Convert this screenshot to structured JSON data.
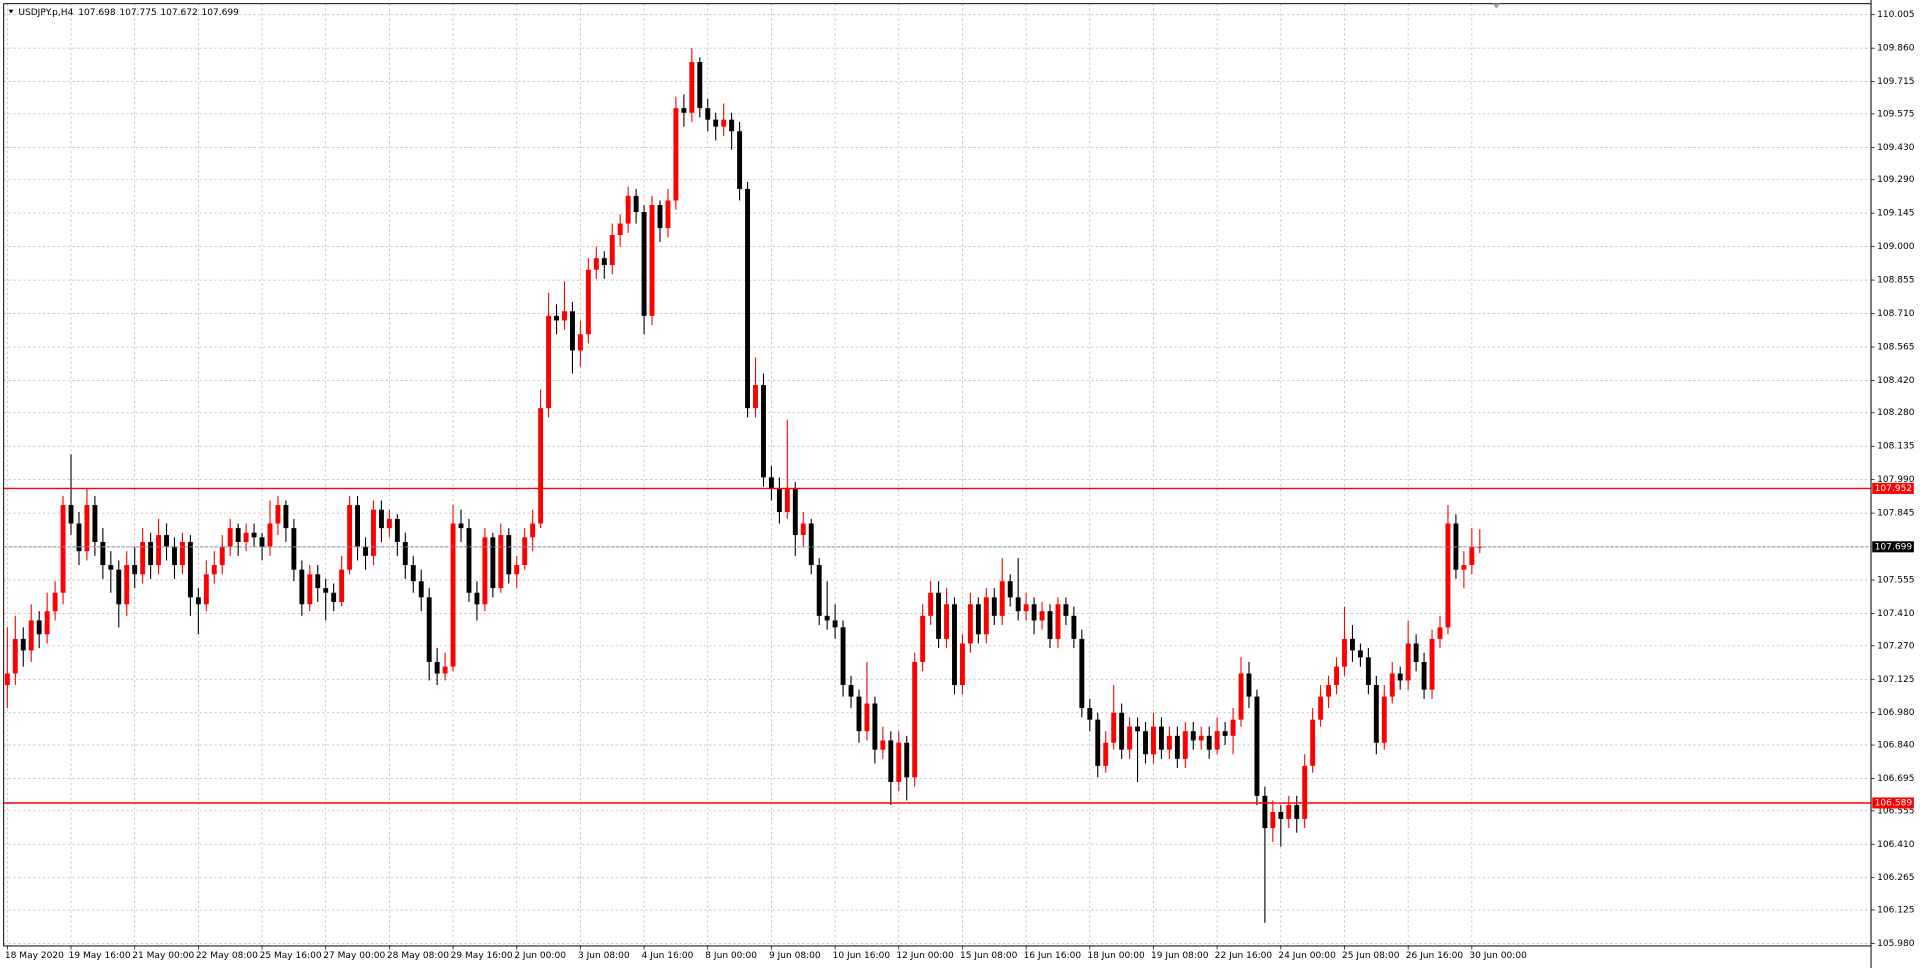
{
  "chart_data": {
    "type": "candlestick",
    "symbol": "USDJPY.p,H4",
    "ylim": [
      105.98,
      110.005
    ],
    "yticks": [
      110.005,
      {
        "value": 109.86,
        "label": "109.860"
      },
      109.715,
      109.575,
      {
        "value": 109.43,
        "label": "109.430"
      },
      {
        "value": 109.29,
        "label": "109.290"
      },
      109.145,
      {
        "value": 109,
        "label": "109.000"
      },
      108.855,
      {
        "value": 108.71,
        "label": "108.710"
      },
      108.565,
      {
        "value": 108.42,
        "label": "108.420"
      },
      {
        "value": 108.28,
        "label": "108.280"
      },
      108.135,
      {
        "value": 107.99,
        "label": "107.990"
      },
      107.845,
      107.555,
      {
        "value": 107.41,
        "label": "107.410"
      },
      {
        "value": 107.27,
        "label": "107.270"
      },
      107.125,
      {
        "value": 106.98,
        "label": "106.980"
      },
      {
        "value": 106.84,
        "label": "106.840"
      },
      106.695,
      106.555,
      {
        "value": 106.41,
        "label": "106.410"
      },
      106.265,
      106.125,
      {
        "value": 105.98,
        "label": "105.980"
      }
    ],
    "grid": true,
    "up_color": "#ff0000",
    "down_color": "#000000",
    "levels": [
      107.952,
      106.589
    ],
    "level_color": "#ff0000",
    "current_price": 107.699,
    "current_color": "#7f8fa6",
    "categories": [
      "18 May 2020",
      null,
      null,
      null,
      null,
      null,
      null,
      null,
      "19 May 16:00",
      null,
      null,
      null,
      null,
      null,
      null,
      null,
      "21 May 00:00",
      null,
      null,
      null,
      null,
      null,
      null,
      null,
      "22 May 08:00",
      null,
      null,
      null,
      null,
      null,
      null,
      null,
      "25 May 16:00",
      null,
      null,
      null,
      null,
      null,
      null,
      null,
      "27 May 00:00",
      null,
      null,
      null,
      null,
      null,
      null,
      null,
      "28 May 08:00",
      null,
      null,
      null,
      null,
      null,
      null,
      null,
      "29 May 16:00",
      null,
      null,
      null,
      null,
      null,
      null,
      null,
      "2 Jun 00:00",
      null,
      null,
      null,
      null,
      null,
      null,
      null,
      "3 Jun 08:00",
      null,
      null,
      null,
      null,
      null,
      null,
      null,
      "4 Jun 16:00",
      null,
      null,
      null,
      null,
      null,
      null,
      null,
      "8 Jun 00:00",
      null,
      null,
      null,
      null,
      null,
      null,
      null,
      "9 Jun 08:00",
      null,
      null,
      null,
      null,
      null,
      null,
      null,
      "10 Jun 16:00",
      null,
      null,
      null,
      null,
      null,
      null,
      null,
      "12 Jun 00:00",
      null,
      null,
      null,
      null,
      null,
      null,
      null,
      "15 Jun 08:00",
      null,
      null,
      null,
      null,
      null,
      null,
      null,
      "16 Jun 16:00",
      null,
      null,
      null,
      null,
      null,
      null,
      null,
      "18 Jun 00:00",
      null,
      null,
      null,
      null,
      null,
      null,
      null,
      "19 Jun 08:00",
      null,
      null,
      null,
      null,
      null,
      null,
      null,
      "22 Jun 16:00",
      null,
      null,
      null,
      null,
      null,
      null,
      null,
      "24 Jun 00:00",
      null,
      null,
      null,
      null,
      null,
      null,
      null,
      "25 Jun 08:00",
      null,
      null,
      null,
      null,
      null,
      null,
      null,
      "26 Jun 16:00",
      null,
      null,
      null,
      null,
      null,
      null,
      null,
      "30 Jun 00:00",
      null
    ],
    "candles": [
      [
        107.1,
        107.35,
        107.0,
        107.15
      ],
      [
        107.15,
        107.4,
        107.1,
        107.3
      ],
      [
        107.3,
        107.35,
        107.18,
        107.25
      ],
      [
        107.25,
        107.45,
        107.2,
        107.38
      ],
      [
        107.38,
        107.42,
        107.26,
        107.32
      ],
      [
        107.32,
        107.5,
        107.28,
        107.42
      ],
      [
        107.42,
        107.55,
        107.38,
        107.5
      ],
      [
        107.5,
        107.92,
        107.45,
        107.88
      ],
      [
        107.88,
        108.1,
        107.75,
        107.8
      ],
      [
        107.8,
        107.85,
        107.62,
        107.68
      ],
      [
        107.68,
        107.95,
        107.64,
        107.88
      ],
      [
        107.88,
        107.92,
        107.66,
        107.72
      ],
      [
        107.72,
        107.78,
        107.56,
        107.62
      ],
      [
        107.62,
        107.68,
        107.5,
        107.6
      ],
      [
        107.6,
        107.64,
        107.35,
        107.45
      ],
      [
        107.45,
        107.68,
        107.4,
        107.62
      ],
      [
        107.62,
        107.7,
        107.52,
        107.58
      ],
      [
        107.58,
        107.78,
        107.54,
        107.72
      ],
      [
        107.72,
        107.76,
        107.56,
        107.62
      ],
      [
        107.62,
        107.82,
        107.58,
        107.75
      ],
      [
        107.75,
        107.8,
        107.64,
        107.7
      ],
      [
        107.7,
        107.74,
        107.56,
        107.62
      ],
      [
        107.62,
        107.76,
        107.58,
        107.72
      ],
      [
        107.72,
        107.75,
        107.4,
        107.48
      ],
      [
        107.48,
        107.52,
        107.32,
        107.45
      ],
      [
        107.45,
        107.64,
        107.42,
        107.58
      ],
      [
        107.58,
        107.68,
        107.54,
        107.62
      ],
      [
        107.62,
        107.75,
        107.58,
        107.7
      ],
      [
        107.7,
        107.82,
        107.66,
        107.78
      ],
      [
        107.78,
        107.8,
        107.66,
        107.72
      ],
      [
        107.72,
        107.8,
        107.68,
        107.76
      ],
      [
        107.76,
        107.8,
        107.7,
        107.74
      ],
      [
        107.74,
        107.76,
        107.64,
        107.7
      ],
      [
        107.7,
        107.9,
        107.66,
        107.8
      ],
      [
        107.8,
        107.92,
        107.75,
        107.88
      ],
      [
        107.88,
        107.9,
        107.72,
        107.78
      ],
      [
        107.78,
        107.82,
        107.55,
        107.6
      ],
      [
        107.6,
        107.64,
        107.4,
        107.45
      ],
      [
        107.45,
        107.62,
        107.42,
        107.58
      ],
      [
        107.58,
        107.62,
        107.46,
        107.52
      ],
      [
        107.52,
        107.56,
        107.38,
        107.5
      ],
      [
        107.5,
        107.54,
        107.42,
        107.46
      ],
      [
        107.46,
        107.66,
        107.44,
        107.6
      ],
      [
        107.6,
        107.92,
        107.58,
        107.88
      ],
      [
        107.88,
        107.92,
        107.64,
        107.7
      ],
      [
        107.7,
        107.74,
        107.6,
        107.66
      ],
      [
        107.66,
        107.9,
        107.62,
        107.86
      ],
      [
        107.86,
        107.9,
        107.72,
        107.78
      ],
      [
        107.78,
        107.86,
        107.74,
        107.82
      ],
      [
        107.82,
        107.84,
        107.66,
        107.72
      ],
      [
        107.72,
        107.76,
        107.56,
        107.62
      ],
      [
        107.62,
        107.66,
        107.5,
        107.55
      ],
      [
        107.55,
        107.6,
        107.42,
        107.48
      ],
      [
        107.48,
        107.52,
        107.12,
        107.2
      ],
      [
        107.2,
        107.26,
        107.1,
        107.15
      ],
      [
        107.15,
        107.24,
        107.12,
        107.18
      ],
      [
        107.18,
        107.88,
        107.16,
        107.8
      ],
      [
        107.8,
        107.86,
        107.72,
        107.78
      ],
      [
        107.78,
        107.82,
        107.46,
        107.5
      ],
      [
        107.5,
        107.55,
        107.38,
        107.45
      ],
      [
        107.45,
        107.78,
        107.42,
        107.74
      ],
      [
        107.74,
        107.76,
        107.48,
        107.52
      ],
      [
        107.52,
        107.8,
        107.5,
        107.75
      ],
      [
        107.75,
        107.78,
        107.54,
        107.58
      ],
      [
        107.58,
        107.66,
        107.52,
        107.62
      ],
      [
        107.62,
        107.78,
        107.6,
        107.74
      ],
      [
        107.74,
        107.86,
        107.68,
        107.8
      ],
      [
        107.8,
        108.38,
        107.78,
        108.3
      ],
      [
        108.3,
        108.8,
        108.26,
        108.7
      ],
      [
        108.7,
        108.75,
        108.62,
        108.68
      ],
      [
        108.68,
        108.85,
        108.64,
        108.72
      ],
      [
        108.72,
        108.76,
        108.45,
        108.55
      ],
      [
        108.55,
        108.68,
        108.48,
        108.62
      ],
      [
        108.62,
        108.95,
        108.58,
        108.9
      ],
      [
        108.9,
        109.0,
        108.86,
        108.95
      ],
      [
        108.95,
        108.98,
        108.86,
        108.92
      ],
      [
        108.92,
        109.1,
        108.88,
        109.05
      ],
      [
        109.05,
        109.14,
        109.0,
        109.1
      ],
      [
        109.1,
        109.26,
        109.06,
        109.22
      ],
      [
        109.22,
        109.25,
        109.1,
        109.15
      ],
      [
        109.15,
        109.18,
        108.62,
        108.7
      ],
      [
        108.7,
        109.22,
        108.66,
        109.18
      ],
      [
        109.18,
        109.2,
        109.02,
        109.08
      ],
      [
        109.08,
        109.25,
        109.04,
        109.2
      ],
      [
        109.2,
        109.65,
        109.16,
        109.6
      ],
      [
        109.6,
        109.66,
        109.52,
        109.58
      ],
      [
        109.58,
        109.86,
        109.54,
        109.8
      ],
      [
        109.8,
        109.82,
        109.56,
        109.6
      ],
      [
        109.6,
        109.64,
        109.5,
        109.55
      ],
      [
        109.55,
        109.58,
        109.46,
        109.52
      ],
      [
        109.52,
        109.62,
        109.48,
        109.55
      ],
      [
        109.55,
        109.58,
        109.42,
        109.5
      ],
      [
        109.5,
        109.54,
        109.2,
        109.25
      ],
      [
        109.25,
        109.28,
        108.26,
        108.3
      ],
      [
        108.3,
        108.52,
        108.26,
        108.4
      ],
      [
        108.4,
        108.45,
        107.96,
        108.0
      ],
      [
        108.0,
        108.05,
        107.9,
        107.95
      ],
      [
        107.95,
        108.0,
        107.8,
        107.85
      ],
      [
        107.85,
        108.25,
        107.82,
        107.95
      ],
      [
        107.95,
        107.98,
        107.66,
        107.75
      ],
      [
        107.75,
        107.85,
        107.7,
        107.8
      ],
      [
        107.8,
        107.82,
        107.58,
        107.62
      ],
      [
        107.62,
        107.65,
        107.36,
        107.4
      ],
      [
        107.4,
        107.55,
        107.34,
        107.38
      ],
      [
        107.38,
        107.45,
        107.3,
        107.35
      ],
      [
        107.35,
        107.38,
        107.05,
        107.1
      ],
      [
        107.1,
        107.14,
        107.0,
        107.05
      ],
      [
        107.05,
        107.08,
        106.85,
        106.9
      ],
      [
        106.9,
        107.2,
        106.86,
        107.02
      ],
      [
        107.02,
        107.05,
        106.76,
        106.82
      ],
      [
        106.82,
        106.92,
        106.78,
        106.86
      ],
      [
        106.86,
        106.9,
        106.58,
        106.68
      ],
      [
        106.68,
        106.9,
        106.64,
        106.85
      ],
      [
        106.85,
        106.88,
        106.6,
        106.7
      ],
      [
        106.7,
        107.24,
        106.66,
        107.2
      ],
      [
        107.2,
        107.45,
        107.16,
        107.4
      ],
      [
        107.4,
        107.55,
        107.36,
        107.5
      ],
      [
        107.5,
        107.55,
        107.26,
        107.3
      ],
      [
        107.3,
        107.52,
        107.26,
        107.45
      ],
      [
        107.45,
        107.48,
        107.06,
        107.1
      ],
      [
        107.1,
        107.32,
        107.06,
        107.28
      ],
      [
        107.28,
        107.5,
        107.24,
        107.45
      ],
      [
        107.45,
        107.48,
        107.28,
        107.32
      ],
      [
        107.32,
        107.52,
        107.28,
        107.48
      ],
      [
        107.48,
        107.52,
        107.36,
        107.4
      ],
      [
        107.4,
        107.65,
        107.36,
        107.55
      ],
      [
        107.55,
        107.58,
        107.44,
        107.48
      ],
      [
        107.48,
        107.65,
        107.38,
        107.42
      ],
      [
        107.42,
        107.5,
        107.38,
        107.45
      ],
      [
        107.45,
        107.48,
        107.32,
        107.38
      ],
      [
        107.38,
        107.46,
        107.34,
        107.42
      ],
      [
        107.42,
        107.45,
        107.26,
        107.3
      ],
      [
        107.3,
        107.48,
        107.26,
        107.45
      ],
      [
        107.45,
        107.48,
        107.36,
        107.4
      ],
      [
        107.4,
        107.44,
        107.26,
        107.3
      ],
      [
        107.3,
        107.34,
        106.96,
        107.0
      ],
      [
        107.0,
        107.04,
        106.9,
        106.95
      ],
      [
        106.95,
        106.98,
        106.7,
        106.75
      ],
      [
        106.75,
        106.9,
        106.72,
        106.85
      ],
      [
        106.85,
        107.1,
        106.82,
        106.98
      ],
      [
        106.98,
        107.02,
        106.78,
        106.82
      ],
      [
        106.82,
        106.96,
        106.78,
        106.92
      ],
      [
        106.92,
        106.96,
        106.68,
        106.9
      ],
      [
        106.9,
        106.94,
        106.76,
        106.8
      ],
      [
        106.8,
        106.98,
        106.76,
        106.92
      ],
      [
        106.92,
        106.96,
        106.78,
        106.82
      ],
      [
        106.82,
        106.92,
        106.78,
        106.88
      ],
      [
        106.88,
        106.92,
        106.74,
        106.78
      ],
      [
        106.78,
        106.94,
        106.74,
        106.9
      ],
      [
        106.9,
        106.94,
        106.82,
        106.86
      ],
      [
        106.86,
        106.92,
        106.82,
        106.88
      ],
      [
        106.88,
        106.92,
        106.78,
        106.82
      ],
      [
        106.82,
        106.96,
        106.8,
        106.9
      ],
      [
        106.9,
        106.94,
        106.84,
        106.88
      ],
      [
        106.88,
        107.0,
        106.8,
        106.95
      ],
      [
        106.95,
        107.22,
        106.92,
        107.15
      ],
      [
        107.15,
        107.2,
        107.0,
        107.05
      ],
      [
        107.05,
        107.08,
        106.58,
        106.62
      ],
      [
        106.62,
        106.66,
        106.07,
        106.48
      ],
      [
        106.48,
        106.6,
        106.42,
        106.55
      ],
      [
        106.55,
        106.58,
        106.4,
        106.52
      ],
      [
        106.52,
        106.62,
        106.48,
        106.58
      ],
      [
        106.58,
        106.62,
        106.46,
        106.52
      ],
      [
        106.52,
        106.8,
        106.48,
        106.75
      ],
      [
        106.75,
        107.0,
        106.72,
        106.95
      ],
      [
        106.95,
        107.1,
        106.92,
        107.05
      ],
      [
        107.05,
        107.14,
        107.0,
        107.1
      ],
      [
        107.1,
        107.22,
        107.06,
        107.18
      ],
      [
        107.18,
        107.44,
        107.14,
        107.3
      ],
      [
        107.3,
        107.36,
        107.2,
        107.25
      ],
      [
        107.25,
        107.28,
        107.18,
        107.22
      ],
      [
        107.22,
        107.26,
        107.06,
        107.1
      ],
      [
        107.1,
        107.14,
        106.8,
        106.85
      ],
      [
        106.85,
        107.1,
        106.82,
        107.05
      ],
      [
        107.05,
        107.2,
        107.02,
        107.15
      ],
      [
        107.15,
        107.18,
        107.08,
        107.12
      ],
      [
        107.12,
        107.38,
        107.08,
        107.28
      ],
      [
        107.28,
        107.32,
        107.16,
        107.2
      ],
      [
        107.2,
        107.24,
        107.04,
        107.08
      ],
      [
        107.08,
        107.34,
        107.04,
        107.3
      ],
      [
        107.3,
        107.4,
        107.26,
        107.35
      ],
      [
        107.35,
        107.88,
        107.32,
        107.8
      ],
      [
        107.8,
        107.84,
        107.56,
        107.6
      ],
      [
        107.6,
        107.68,
        107.52,
        107.62
      ],
      [
        107.62,
        107.78,
        107.58,
        107.698
      ],
      [
        107.698,
        107.775,
        107.672,
        107.699
      ]
    ]
  }
}
